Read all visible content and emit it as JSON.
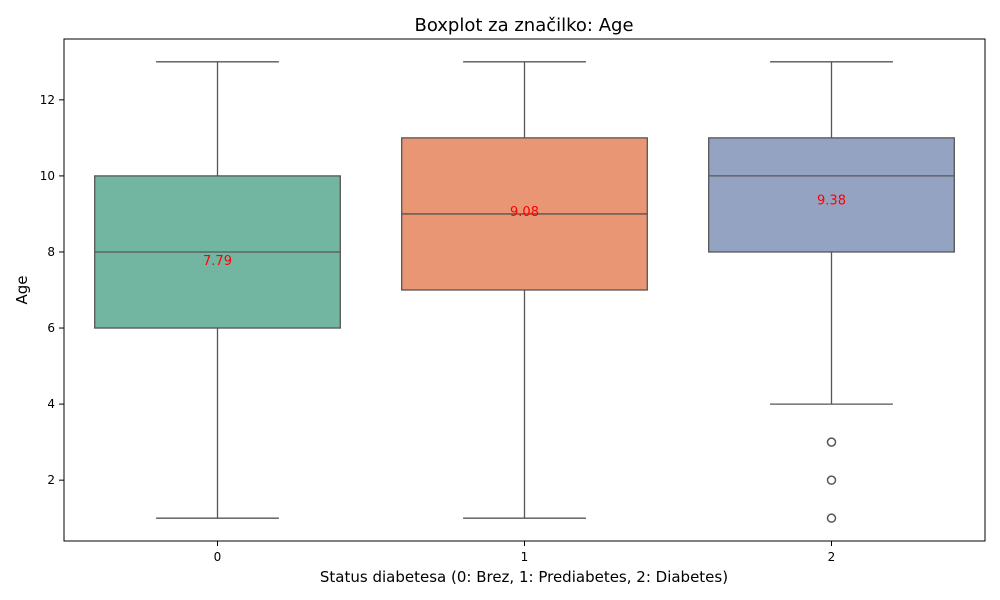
{
  "chart_data": {
    "type": "boxplot",
    "title": "Boxplot za značilko: Age",
    "xlabel": "Status diabetesa (0: Brez, 1: Prediabetes, 2: Diabetes)",
    "ylabel": "Age",
    "ylim": [
      0.4,
      13.6
    ],
    "yticks": [
      2,
      4,
      6,
      8,
      10,
      12
    ],
    "grid": false,
    "categories": [
      "0",
      "1",
      "2"
    ],
    "boxes": [
      {
        "category": "0",
        "whisker_low": 1,
        "q1": 6,
        "median": 8,
        "q3": 10,
        "whisker_high": 13,
        "mean": 7.79,
        "mean_label": "7.79",
        "outliers": [],
        "color": "#72b6a1"
      },
      {
        "category": "1",
        "whisker_low": 1,
        "q1": 7,
        "median": 9,
        "q3": 11,
        "whisker_high": 13,
        "mean": 9.08,
        "mean_label": "9.08",
        "outliers": [],
        "color": "#e99675"
      },
      {
        "category": "2",
        "whisker_low": 4,
        "q1": 8,
        "median": 10,
        "q3": 11,
        "whisker_high": 13,
        "mean": 9.38,
        "mean_label": "9.38",
        "outliers": [
          1,
          2,
          3
        ],
        "color": "#95a3c3"
      }
    ],
    "line_color": "#555555",
    "mean_label_color": "#ff0000"
  }
}
